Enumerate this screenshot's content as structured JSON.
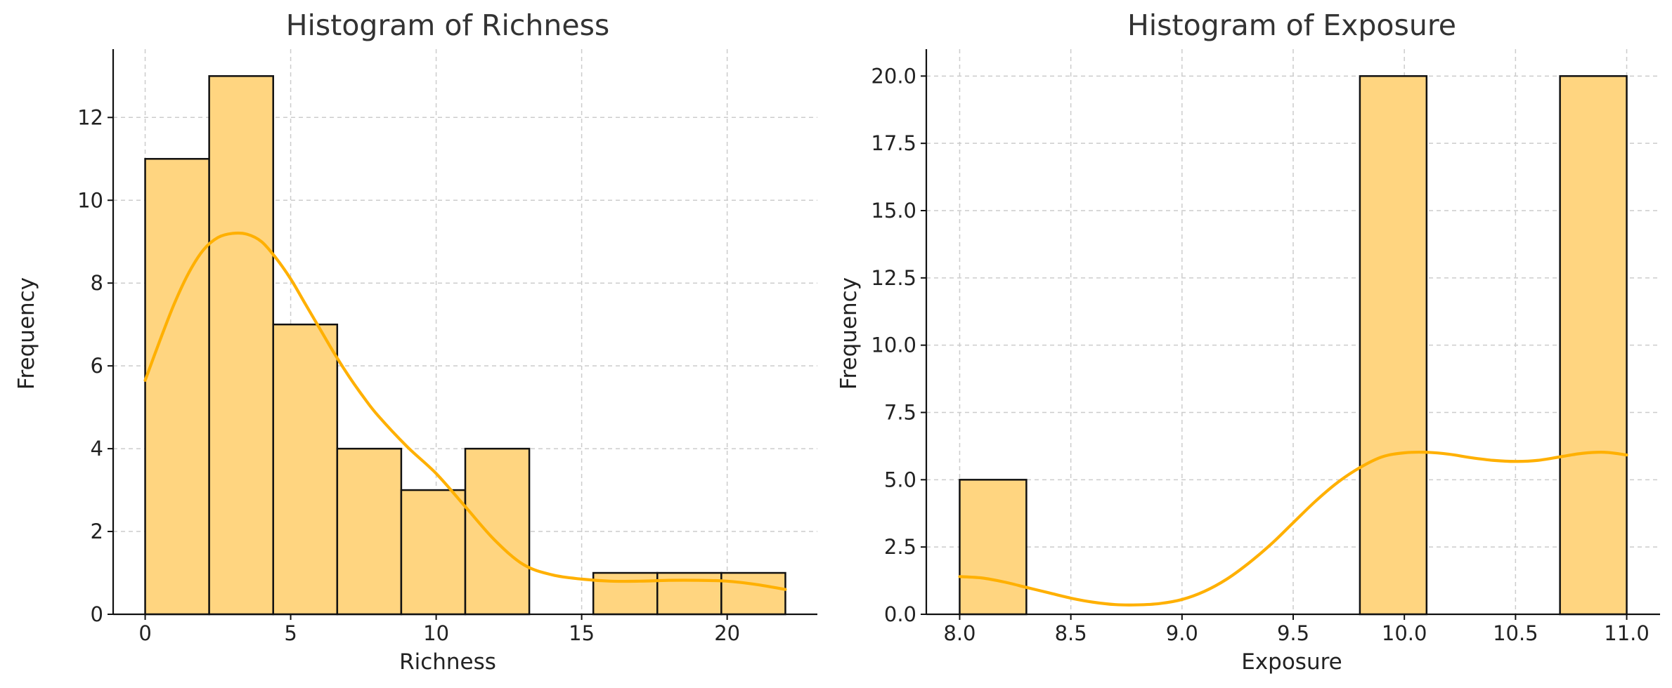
{
  "chart_data": [
    {
      "type": "bar",
      "subtype": "histogram",
      "title": "Histogram of Richness",
      "xlabel": "Richness",
      "ylabel": "Frequency",
      "xlim": [
        -1.1,
        23.1
      ],
      "ylim": [
        0,
        13.65
      ],
      "xticks": [
        0,
        5,
        10,
        15,
        20
      ],
      "xtick_labels": [
        "0",
        "5",
        "10",
        "15",
        "20"
      ],
      "yticks": [
        0,
        2,
        4,
        6,
        8,
        10,
        12
      ],
      "ytick_labels": [
        "0",
        "2",
        "4",
        "6",
        "8",
        "10",
        "12"
      ],
      "grid": true,
      "bin_edges": [
        0,
        2.2,
        4.4,
        6.6,
        8.8,
        11.0,
        13.2,
        15.4,
        17.6,
        19.8,
        22.0
      ],
      "values": [
        11,
        13,
        7,
        4,
        3,
        4,
        0,
        1,
        1,
        1
      ],
      "bar_color": "#ffd580",
      "kde_color": "#ffb000",
      "kde": {
        "x": [
          0,
          0.5,
          1,
          1.5,
          2,
          2.5,
          3,
          3.5,
          4,
          4.5,
          5,
          5.5,
          6,
          6.5,
          7,
          7.5,
          8,
          9,
          10,
          11,
          12,
          13,
          14,
          15,
          16,
          17,
          18,
          19,
          20,
          21,
          22
        ],
        "y": [
          5.65,
          6.6,
          7.5,
          8.25,
          8.8,
          9.1,
          9.2,
          9.18,
          9.0,
          8.6,
          8.1,
          7.5,
          6.9,
          6.3,
          5.75,
          5.25,
          4.8,
          4.05,
          3.4,
          2.6,
          1.8,
          1.2,
          0.95,
          0.85,
          0.8,
          0.8,
          0.82,
          0.82,
          0.8,
          0.72,
          0.6
        ]
      }
    },
    {
      "type": "bar",
      "subtype": "histogram",
      "title": "Histogram of Exposure",
      "xlabel": "Exposure",
      "ylabel": "Frequency",
      "xlim": [
        7.85,
        11.15
      ],
      "ylim": [
        0,
        21
      ],
      "xticks": [
        8.0,
        8.5,
        9.0,
        9.5,
        10.0,
        10.5,
        11.0
      ],
      "xtick_labels": [
        "8.0",
        "8.5",
        "9.0",
        "9.5",
        "10.0",
        "10.5",
        "11.0"
      ],
      "yticks": [
        0,
        2.5,
        5,
        7.5,
        10,
        12.5,
        15,
        17.5,
        20
      ],
      "ytick_labels": [
        "0.0",
        "2.5",
        "5.0",
        "7.5",
        "10.0",
        "12.5",
        "15.0",
        "17.5",
        "20.0"
      ],
      "grid": true,
      "bin_edges": [
        8.0,
        8.3,
        8.6,
        8.9,
        9.2,
        9.5,
        9.8,
        10.1,
        10.4,
        10.7,
        11.0
      ],
      "values": [
        5,
        0,
        0,
        0,
        0,
        0,
        20,
        0,
        0,
        20
      ],
      "bar_color": "#ffd580",
      "kde_color": "#ffb000",
      "kde": {
        "x": [
          8.0,
          8.1,
          8.2,
          8.3,
          8.4,
          8.5,
          8.6,
          8.7,
          8.8,
          8.9,
          9.0,
          9.1,
          9.2,
          9.3,
          9.4,
          9.5,
          9.6,
          9.7,
          9.8,
          9.9,
          10.0,
          10.1,
          10.2,
          10.3,
          10.4,
          10.5,
          10.6,
          10.7,
          10.8,
          10.9,
          11.0
        ],
        "y": [
          1.4,
          1.35,
          1.2,
          1.0,
          0.8,
          0.6,
          0.45,
          0.36,
          0.35,
          0.4,
          0.55,
          0.85,
          1.3,
          1.9,
          2.6,
          3.4,
          4.2,
          4.9,
          5.45,
          5.85,
          6.0,
          6.02,
          5.95,
          5.82,
          5.72,
          5.68,
          5.72,
          5.85,
          5.98,
          6.02,
          5.92
        ]
      }
    }
  ]
}
